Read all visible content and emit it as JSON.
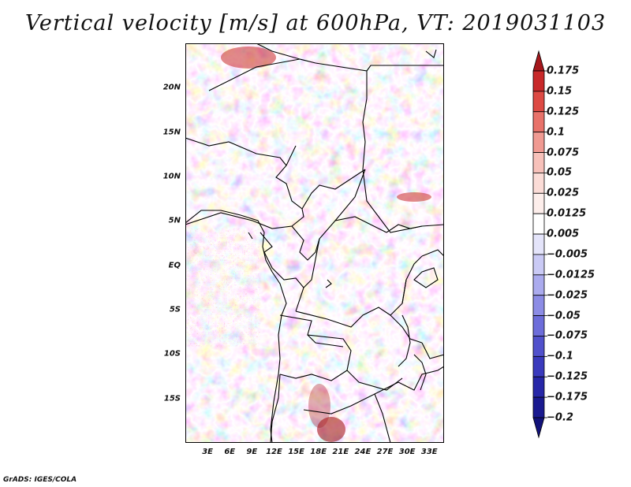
{
  "title": "Vertical velocity [m/s] at 600hPa, VT: 2019031103",
  "map": {
    "variable": "Vertical velocity",
    "units": "m/s",
    "level": "600hPa",
    "valid_time": "2019031103",
    "lat_range": [
      -20,
      25
    ],
    "lon_range": [
      0,
      35
    ],
    "lat_ticks": [
      {
        "value": 20,
        "label": "20N"
      },
      {
        "value": 15,
        "label": "15N"
      },
      {
        "value": 10,
        "label": "10N"
      },
      {
        "value": 5,
        "label": "5N"
      },
      {
        "value": 0,
        "label": "EQ"
      },
      {
        "value": -5,
        "label": "5S"
      },
      {
        "value": -10,
        "label": "10S"
      },
      {
        "value": -15,
        "label": "15S"
      }
    ],
    "lon_ticks": [
      {
        "value": 3,
        "label": "3E"
      },
      {
        "value": 6,
        "label": "6E"
      },
      {
        "value": 9,
        "label": "9E"
      },
      {
        "value": 12,
        "label": "12E"
      },
      {
        "value": 15,
        "label": "15E"
      },
      {
        "value": 18,
        "label": "18E"
      },
      {
        "value": 21,
        "label": "21E"
      },
      {
        "value": 24,
        "label": "24E"
      },
      {
        "value": 27,
        "label": "27E"
      },
      {
        "value": 30,
        "label": "30E"
      },
      {
        "value": 33,
        "label": "33E"
      }
    ]
  },
  "colorbar": {
    "labels": [
      "0.175",
      "0.15",
      "0.125",
      "0.1",
      "0.075",
      "0.05",
      "0.025",
      "0.0125",
      "0.005",
      "−0.005",
      "−0.0125",
      "−0.025",
      "−0.05",
      "−0.075",
      "−0.1",
      "−0.125",
      "−0.175",
      "−0.2"
    ],
    "colors": [
      "#a5171c",
      "#c8292a",
      "#dd4a44",
      "#e8726a",
      "#f09a92",
      "#f7c1ba",
      "#fbdcd7",
      "#fdeeeb",
      "#ffffff",
      "#e4e4fa",
      "#cacaf5",
      "#ababee",
      "#8c8ce5",
      "#6d6dda",
      "#5151cc",
      "#3a3abd",
      "#2727a8",
      "#1a1a90",
      "#12127a"
    ]
  },
  "credit": "GrADS: IGES/COLA"
}
